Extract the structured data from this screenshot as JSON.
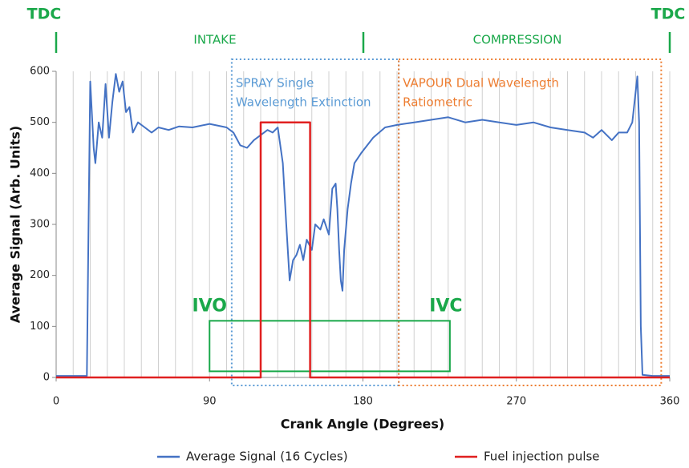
{
  "chart_data": {
    "type": "line",
    "xlabel": "Crank Angle (Degrees)",
    "ylabel": "Average Signal (Arb. Units)",
    "xlim": [
      0,
      360
    ],
    "ylim": [
      0,
      600
    ],
    "xticks": [
      0,
      90,
      180,
      270,
      360
    ],
    "yticks": [
      0,
      100,
      200,
      300,
      400,
      500,
      600
    ],
    "xgrid": [
      0,
      10,
      20,
      30,
      40,
      50,
      60,
      70,
      80,
      90,
      100,
      110,
      120,
      130,
      140,
      150,
      160,
      170,
      180,
      190,
      200,
      210,
      220,
      230,
      240,
      250,
      260,
      270,
      280,
      290,
      300,
      310,
      320,
      330,
      340,
      350,
      360
    ],
    "phase_labels": {
      "tdc_start": "TDC",
      "intake": "INTAKE",
      "compression": "COMPRESSION",
      "tdc_end": "TDC"
    },
    "series": [
      {
        "name": "Average Signal (16 Cycles)",
        "color": "#4472c4",
        "x": [
          0,
          10,
          18,
          19,
          20,
          22,
          23,
          25,
          27,
          29,
          31,
          33,
          35,
          37,
          39,
          41,
          43,
          45,
          48,
          52,
          56,
          60,
          66,
          72,
          80,
          90,
          100,
          104,
          108,
          112,
          116,
          120,
          124,
          127,
          130,
          133,
          135,
          137,
          139,
          141,
          143,
          145,
          147,
          150,
          152,
          155,
          157,
          160,
          162,
          164,
          165,
          166,
          167,
          168,
          169,
          171,
          173,
          175,
          179,
          186,
          193,
          200,
          210,
          220,
          230,
          240,
          250,
          260,
          270,
          280,
          290,
          300,
          310,
          315,
          320,
          326,
          330,
          335,
          338,
          340,
          341,
          342,
          343,
          344,
          350,
          360
        ],
        "values": [
          3,
          3,
          3,
          300,
          580,
          450,
          420,
          500,
          470,
          575,
          470,
          540,
          595,
          560,
          580,
          520,
          530,
          480,
          500,
          490,
          480,
          490,
          485,
          492,
          490,
          497,
          490,
          480,
          455,
          450,
          465,
          475,
          485,
          480,
          490,
          420,
          300,
          190,
          230,
          240,
          260,
          230,
          270,
          250,
          300,
          290,
          310,
          280,
          370,
          380,
          330,
          250,
          190,
          170,
          250,
          330,
          380,
          420,
          440,
          470,
          490,
          495,
          500,
          505,
          510,
          500,
          505,
          500,
          495,
          500,
          490,
          485,
          480,
          470,
          485,
          465,
          480,
          480,
          500,
          560,
          590,
          500,
          100,
          5,
          3,
          3
        ]
      },
      {
        "name": "Fuel injection pulse",
        "color": "#e02020",
        "x": [
          0,
          120,
          120,
          149,
          149,
          360
        ],
        "values": [
          0,
          0,
          500,
          500,
          0,
          0
        ]
      }
    ],
    "regions": [
      {
        "label_lines": [
          "SPRAY Single",
          "Wavelength Extinction"
        ],
        "x": [
          103,
          201
        ],
        "color": "#5b9bd5"
      },
      {
        "label_lines": [
          "VAPOUR Dual Wavelength",
          "Ratiometric"
        ],
        "x": [
          201,
          355
        ],
        "color": "#ed7d31"
      }
    ],
    "valve_box": {
      "x": [
        90,
        231
      ],
      "y": [
        12,
        111
      ],
      "labels": [
        "IVO",
        "IVC"
      ],
      "color": "#1aa84a"
    },
    "legend": "bottom"
  }
}
